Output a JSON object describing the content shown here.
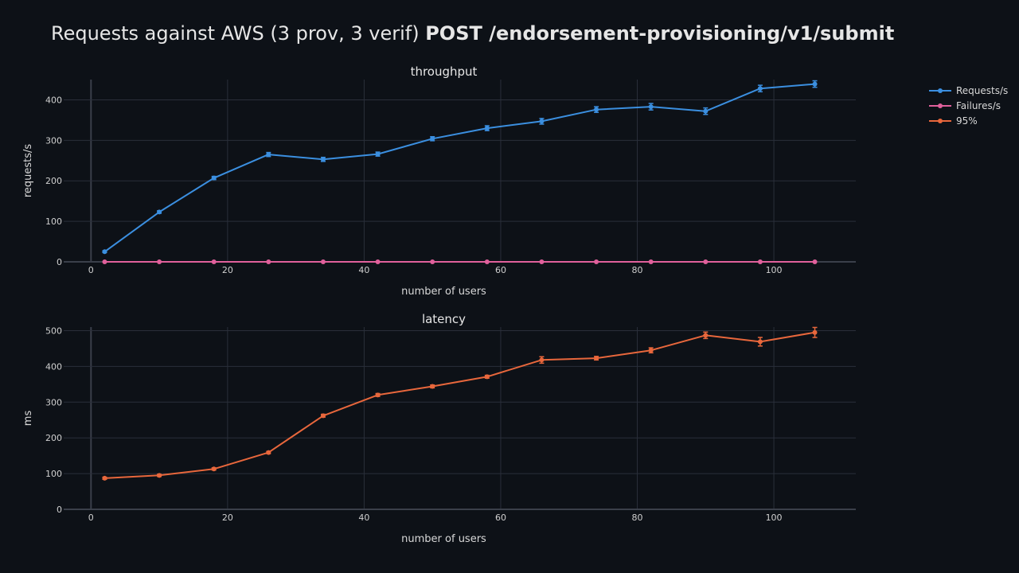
{
  "title": {
    "prefix": "Requests against AWS (3 prov, 3 verif) ",
    "bold": "POST /endorsement-provisioning/v1/submit"
  },
  "colors": {
    "background": "#0d1117",
    "grid": "#2a2f3a",
    "zeroline": "#3a3f4a",
    "requests": "#3b8fe0",
    "failures": "#e0609b",
    "p95": "#e8673c"
  },
  "legend": [
    {
      "label": "Requests/s",
      "color": "#3b8fe0"
    },
    {
      "label": "Failures/s",
      "color": "#e0609b"
    },
    {
      "label": "95%",
      "color": "#e8673c"
    }
  ],
  "chart_data": [
    {
      "type": "line",
      "title": "throughput",
      "xlabel": "number of users",
      "ylabel": "requests/s",
      "xlim": [
        -4,
        112
      ],
      "ylim": [
        0,
        450
      ],
      "xticks": [
        0,
        20,
        40,
        60,
        80,
        100
      ],
      "yticks": [
        0,
        100,
        200,
        300,
        400
      ],
      "grid": true,
      "x": [
        2,
        10,
        18,
        26,
        34,
        42,
        50,
        58,
        66,
        74,
        82,
        90,
        98,
        106
      ],
      "series": [
        {
          "name": "Requests/s",
          "color": "#3b8fe0",
          "values": [
            25,
            123,
            207,
            265,
            253,
            266,
            304,
            330,
            347,
            376,
            383,
            372,
            428,
            439
          ],
          "errors": [
            2,
            3,
            4,
            5,
            5,
            5,
            5,
            6,
            7,
            7,
            8,
            8,
            8,
            8
          ]
        },
        {
          "name": "Failures/s",
          "color": "#e0609b",
          "values": [
            0,
            0,
            0,
            0,
            0,
            0,
            0,
            0,
            0,
            0,
            0,
            0,
            0,
            0
          ],
          "errors": [
            0,
            0,
            0,
            0,
            0,
            0,
            0,
            0,
            0,
            0,
            0,
            0,
            0,
            0
          ]
        }
      ]
    },
    {
      "type": "line",
      "title": "latency",
      "xlabel": "number of users",
      "ylabel": "ms",
      "xlim": [
        -4,
        112
      ],
      "ylim": [
        0,
        510
      ],
      "xticks": [
        0,
        20,
        40,
        60,
        80,
        100
      ],
      "yticks": [
        0,
        100,
        200,
        300,
        400,
        500
      ],
      "grid": true,
      "x": [
        2,
        10,
        18,
        26,
        34,
        42,
        50,
        58,
        66,
        74,
        82,
        90,
        98,
        106
      ],
      "series": [
        {
          "name": "95%",
          "color": "#e8673c",
          "values": [
            87,
            95,
            113,
            159,
            262,
            320,
            344,
            371,
            418,
            423,
            445,
            487,
            469,
            495
          ],
          "errors": [
            3,
            3,
            3,
            3,
            4,
            4,
            4,
            4,
            9,
            5,
            7,
            9,
            12,
            14
          ]
        }
      ]
    }
  ]
}
